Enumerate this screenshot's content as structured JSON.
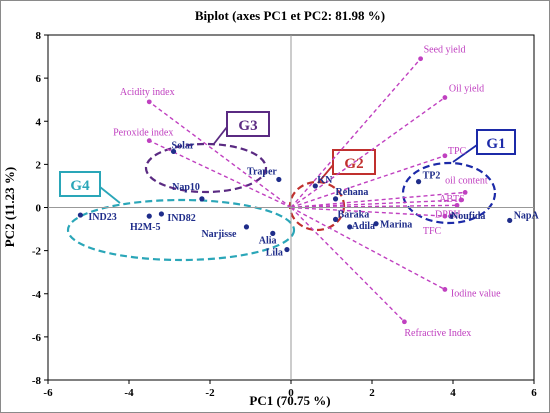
{
  "chart_data": {
    "type": "scatter",
    "title": "Biplot (axes PC1 et PC2: 81.98 %)",
    "xlabel": "PC1 (70.75 %)",
    "ylabel": "PC2 (11.23 %)",
    "xlim": [
      -6,
      6
    ],
    "ylim": [
      -8,
      8
    ],
    "xticks": [
      "-6",
      "-4",
      "-2",
      "0",
      "2",
      "4",
      "6"
    ],
    "yticks": [
      "-8",
      "-6",
      "-4",
      "-2",
      "0",
      "2",
      "4",
      "6",
      "8"
    ],
    "grid": false,
    "colors": {
      "observations": "#1f2d8a",
      "variables": "#c040c0"
    },
    "observations": [
      {
        "label": "Solar",
        "x": -2.9,
        "y": 2.6
      },
      {
        "label": "Nap10",
        "x": -2.2,
        "y": 0.4
      },
      {
        "label": "Traper",
        "x": -0.3,
        "y": 1.3
      },
      {
        "label": "IND23",
        "x": -5.2,
        "y": -0.35
      },
      {
        "label": "IND82",
        "x": -3.2,
        "y": -0.3
      },
      {
        "label": "H2M-5",
        "x": -3.5,
        "y": -0.4
      },
      {
        "label": "Narjisse",
        "x": -1.1,
        "y": -0.9
      },
      {
        "label": "Alia",
        "x": -0.45,
        "y": -1.2
      },
      {
        "label": "Lila",
        "x": -0.1,
        "y": -1.95
      },
      {
        "label": "KN",
        "x": 0.6,
        "y": 1.0
      },
      {
        "label": "Rehana",
        "x": 1.1,
        "y": 0.4
      },
      {
        "label": "Baraka",
        "x": 1.1,
        "y": -0.55
      },
      {
        "label": "Adila",
        "x": 1.45,
        "y": -0.9
      },
      {
        "label": "Marina",
        "x": 2.1,
        "y": -0.75
      },
      {
        "label": "TP2",
        "x": 3.15,
        "y": 1.2
      },
      {
        "label": "Noufida",
        "x": 3.95,
        "y": -0.4
      },
      {
        "label": "NapA",
        "x": 5.4,
        "y": -0.6
      }
    ],
    "variables": [
      {
        "label": "Seed yield",
        "x": 3.2,
        "y": 6.9
      },
      {
        "label": "Oil yield",
        "x": 3.8,
        "y": 5.1
      },
      {
        "label": "Acidity index",
        "x": -3.5,
        "y": 4.9
      },
      {
        "label": "Peroxide index",
        "x": -3.5,
        "y": 3.1
      },
      {
        "label": "TPC",
        "x": 3.8,
        "y": 2.4
      },
      {
        "label": "oil content",
        "x": 4.3,
        "y": 0.7
      },
      {
        "label": "ABTS",
        "x": 4.2,
        "y": 0.35
      },
      {
        "label": "DPPH",
        "x": 4.1,
        "y": 0.1
      },
      {
        "label": "TFC",
        "x": 3.8,
        "y": -0.4
      },
      {
        "label": "Iodine value",
        "x": 3.8,
        "y": -3.8
      },
      {
        "label": "Refractive Index",
        "x": 2.8,
        "y": -5.3
      }
    ],
    "groups": [
      {
        "label": "G1",
        "color": "#1c2aa8"
      },
      {
        "label": "G2",
        "color": "#c0302e"
      },
      {
        "label": "G3",
        "color": "#5a2a82"
      },
      {
        "label": "G4",
        "color": "#2aa6b8"
      }
    ]
  }
}
